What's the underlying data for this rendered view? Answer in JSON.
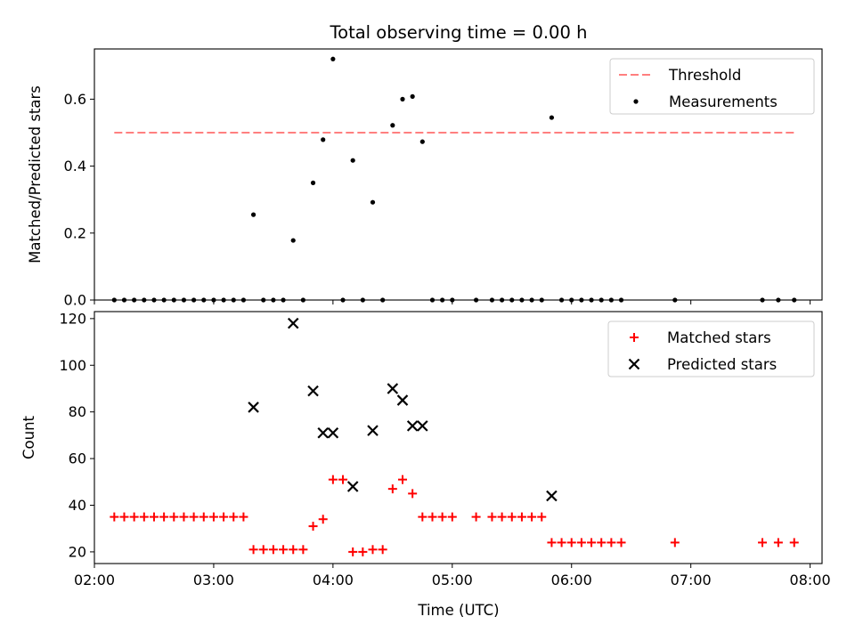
{
  "figure": {
    "title": "Total observing time = 0.00 h",
    "xlabel": "Time (UTC)"
  },
  "colors": {
    "threshold": "#ff7f7f",
    "measurement": "#000000",
    "matched": "#ff0000",
    "predicted": "#000000"
  },
  "chart_data": [
    {
      "type": "scatter",
      "name": "ratio",
      "ylabel": "Matched/Predicted stars",
      "xlim": [
        "02:00",
        "08:06"
      ],
      "ylim": [
        0,
        0.75
      ],
      "yticks": [
        0.0,
        0.2,
        0.4,
        0.6
      ],
      "ytick_labels": [
        "0.0",
        "0.2",
        "0.4",
        "0.6"
      ],
      "xtick_labels_visible": false,
      "legend": {
        "placement": "top-right",
        "entries": [
          "Threshold",
          "Measurements"
        ]
      },
      "threshold": {
        "name": "Threshold",
        "value": 0.5,
        "x_start": "02:10",
        "x_end": "07:52",
        "style": "dashed"
      },
      "series": [
        {
          "name": "Measurements",
          "marker": "dot",
          "points": [
            [
              "02:10",
              0
            ],
            [
              "02:15",
              0
            ],
            [
              "02:20",
              0
            ],
            [
              "02:25",
              0
            ],
            [
              "02:30",
              0
            ],
            [
              "02:35",
              0
            ],
            [
              "02:40",
              0
            ],
            [
              "02:45",
              0
            ],
            [
              "02:50",
              0
            ],
            [
              "02:55",
              0
            ],
            [
              "03:00",
              0
            ],
            [
              "03:05",
              0
            ],
            [
              "03:10",
              0
            ],
            [
              "03:15",
              0
            ],
            [
              "03:20",
              0.255
            ],
            [
              "03:25",
              0
            ],
            [
              "03:30",
              0
            ],
            [
              "03:35",
              0
            ],
            [
              "03:40",
              0.178
            ],
            [
              "03:45",
              0
            ],
            [
              "03:50",
              0.35
            ],
            [
              "03:55",
              0.479
            ],
            [
              "04:00",
              0.72
            ],
            [
              "04:05",
              0
            ],
            [
              "04:10",
              0.417
            ],
            [
              "04:15",
              0
            ],
            [
              "04:20",
              0.292
            ],
            [
              "04:25",
              0
            ],
            [
              "04:30",
              0.522
            ],
            [
              "04:35",
              0.6
            ],
            [
              "04:40",
              0.608
            ],
            [
              "04:45",
              0.473
            ],
            [
              "04:50",
              0
            ],
            [
              "04:55",
              0
            ],
            [
              "05:00",
              0
            ],
            [
              "05:12",
              0
            ],
            [
              "05:20",
              0
            ],
            [
              "05:25",
              0
            ],
            [
              "05:30",
              0
            ],
            [
              "05:35",
              0
            ],
            [
              "05:40",
              0
            ],
            [
              "05:45",
              0
            ],
            [
              "05:50",
              0.545
            ],
            [
              "05:55",
              0
            ],
            [
              "06:00",
              0
            ],
            [
              "06:05",
              0
            ],
            [
              "06:10",
              0
            ],
            [
              "06:15",
              0
            ],
            [
              "06:20",
              0
            ],
            [
              "06:25",
              0
            ],
            [
              "06:52",
              0
            ],
            [
              "07:36",
              0
            ],
            [
              "07:44",
              0
            ],
            [
              "07:52",
              0
            ]
          ]
        }
      ]
    },
    {
      "type": "scatter",
      "name": "counts",
      "ylabel": "Count",
      "xlim": [
        "02:00",
        "08:06"
      ],
      "ylim": [
        15,
        123
      ],
      "yticks": [
        20,
        40,
        60,
        80,
        100,
        120
      ],
      "ytick_labels": [
        "20",
        "40",
        "60",
        "80",
        "100",
        "120"
      ],
      "xticks": [
        "02:00",
        "03:00",
        "04:00",
        "05:00",
        "06:00",
        "07:00",
        "08:00"
      ],
      "xtick_labels": [
        "02:00",
        "03:00",
        "04:00",
        "05:00",
        "06:00",
        "07:00",
        "08:00"
      ],
      "legend": {
        "placement": "top-right",
        "entries": [
          "Matched stars",
          "Predicted stars"
        ]
      },
      "series": [
        {
          "name": "Matched stars",
          "marker": "plus",
          "points": [
            [
              "02:10",
              35
            ],
            [
              "02:15",
              35
            ],
            [
              "02:20",
              35
            ],
            [
              "02:25",
              35
            ],
            [
              "02:30",
              35
            ],
            [
              "02:35",
              35
            ],
            [
              "02:40",
              35
            ],
            [
              "02:45",
              35
            ],
            [
              "02:50",
              35
            ],
            [
              "02:55",
              35
            ],
            [
              "03:00",
              35
            ],
            [
              "03:05",
              35
            ],
            [
              "03:10",
              35
            ],
            [
              "03:15",
              35
            ],
            [
              "03:20",
              21
            ],
            [
              "03:25",
              21
            ],
            [
              "03:30",
              21
            ],
            [
              "03:35",
              21
            ],
            [
              "03:40",
              21
            ],
            [
              "03:45",
              21
            ],
            [
              "03:50",
              31
            ],
            [
              "03:55",
              34
            ],
            [
              "04:00",
              51
            ],
            [
              "04:05",
              51
            ],
            [
              "04:10",
              20
            ],
            [
              "04:15",
              20
            ],
            [
              "04:20",
              21
            ],
            [
              "04:25",
              21
            ],
            [
              "04:30",
              47
            ],
            [
              "04:35",
              51
            ],
            [
              "04:40",
              45
            ],
            [
              "04:45",
              35
            ],
            [
              "04:50",
              35
            ],
            [
              "04:55",
              35
            ],
            [
              "05:00",
              35
            ],
            [
              "05:12",
              35
            ],
            [
              "05:20",
              35
            ],
            [
              "05:25",
              35
            ],
            [
              "05:30",
              35
            ],
            [
              "05:35",
              35
            ],
            [
              "05:40",
              35
            ],
            [
              "05:45",
              35
            ],
            [
              "05:50",
              24
            ],
            [
              "05:55",
              24
            ],
            [
              "06:00",
              24
            ],
            [
              "06:05",
              24
            ],
            [
              "06:10",
              24
            ],
            [
              "06:15",
              24
            ],
            [
              "06:20",
              24
            ],
            [
              "06:25",
              24
            ],
            [
              "06:52",
              24
            ],
            [
              "07:36",
              24
            ],
            [
              "07:44",
              24
            ],
            [
              "07:52",
              24
            ]
          ]
        },
        {
          "name": "Predicted stars",
          "marker": "x",
          "points": [
            [
              "03:20",
              82
            ],
            [
              "03:40",
              118
            ],
            [
              "03:50",
              89
            ],
            [
              "03:55",
              71
            ],
            [
              "04:00",
              71
            ],
            [
              "04:10",
              48
            ],
            [
              "04:20",
              72
            ],
            [
              "04:30",
              90
            ],
            [
              "04:35",
              85
            ],
            [
              "04:40",
              74
            ],
            [
              "04:45",
              74
            ],
            [
              "05:50",
              44
            ]
          ]
        }
      ]
    }
  ]
}
